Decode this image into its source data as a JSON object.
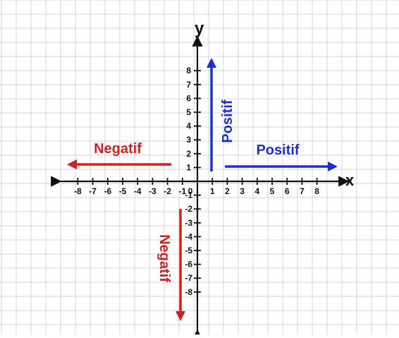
{
  "axes": {
    "x_label": "x",
    "y_label": "y",
    "origin_label": "0",
    "x_ticks_negative": [
      "-8",
      "-7",
      "-6",
      "-5",
      "-4",
      "-3",
      "-2",
      "-1"
    ],
    "x_ticks_positive": [
      "1",
      "2",
      "3",
      "4",
      "5",
      "6",
      "7",
      "8"
    ],
    "y_ticks_positive": [
      "1",
      "2",
      "3",
      "4",
      "5",
      "6",
      "7",
      "8"
    ],
    "y_ticks_negative": [
      "-1",
      "-2",
      "-3",
      "-4",
      "-5",
      "-6",
      "-7",
      "-8"
    ]
  },
  "arrows": {
    "x_positive_label": "Positif",
    "x_negative_label": "Negatif",
    "y_positive_label": "Positif",
    "y_negative_label": "Negatif"
  },
  "colors": {
    "positive": "#1a2fd6",
    "negative": "#d62020",
    "grid": "#d6d6d6",
    "axis": "#111111"
  }
}
